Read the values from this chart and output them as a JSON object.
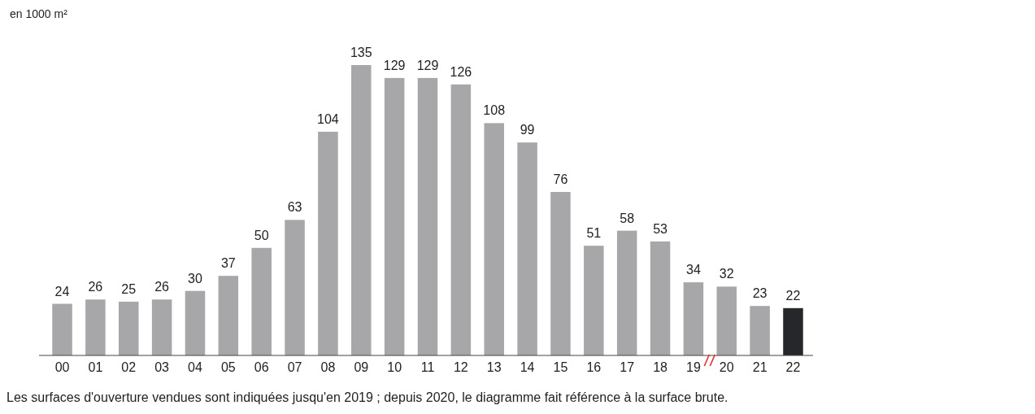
{
  "chart_data": {
    "type": "bar",
    "ylabel": "en 1000 m²",
    "categories": [
      "00",
      "01",
      "02",
      "03",
      "04",
      "05",
      "06",
      "07",
      "08",
      "09",
      "10",
      "11",
      "12",
      "13",
      "14",
      "15",
      "16",
      "17",
      "18",
      "19",
      "20",
      "21",
      "22"
    ],
    "values": [
      24,
      26,
      25,
      26,
      30,
      37,
      50,
      63,
      104,
      135,
      129,
      129,
      126,
      108,
      99,
      76,
      51,
      58,
      53,
      34,
      32,
      23,
      22
    ],
    "colors": [
      "#a7a7a9",
      "#a7a7a9",
      "#a7a7a9",
      "#a7a7a9",
      "#a7a7a9",
      "#a7a7a9",
      "#a7a7a9",
      "#a7a7a9",
      "#a7a7a9",
      "#a7a7a9",
      "#a7a7a9",
      "#a7a7a9",
      "#a7a7a9",
      "#a7a7a9",
      "#a7a7a9",
      "#a7a7a9",
      "#a7a7a9",
      "#a7a7a9",
      "#a7a7a9",
      "#a7a7a9",
      "#a7a7a9",
      "#a7a7a9",
      "#26272b"
    ],
    "data_labels": true,
    "annotations": [
      "Les surfaces d'ouverture vendues sont indiquées jusqu'en 2019 ; depuis 2020, le diagramme fait référence à la surface brute."
    ]
  }
}
